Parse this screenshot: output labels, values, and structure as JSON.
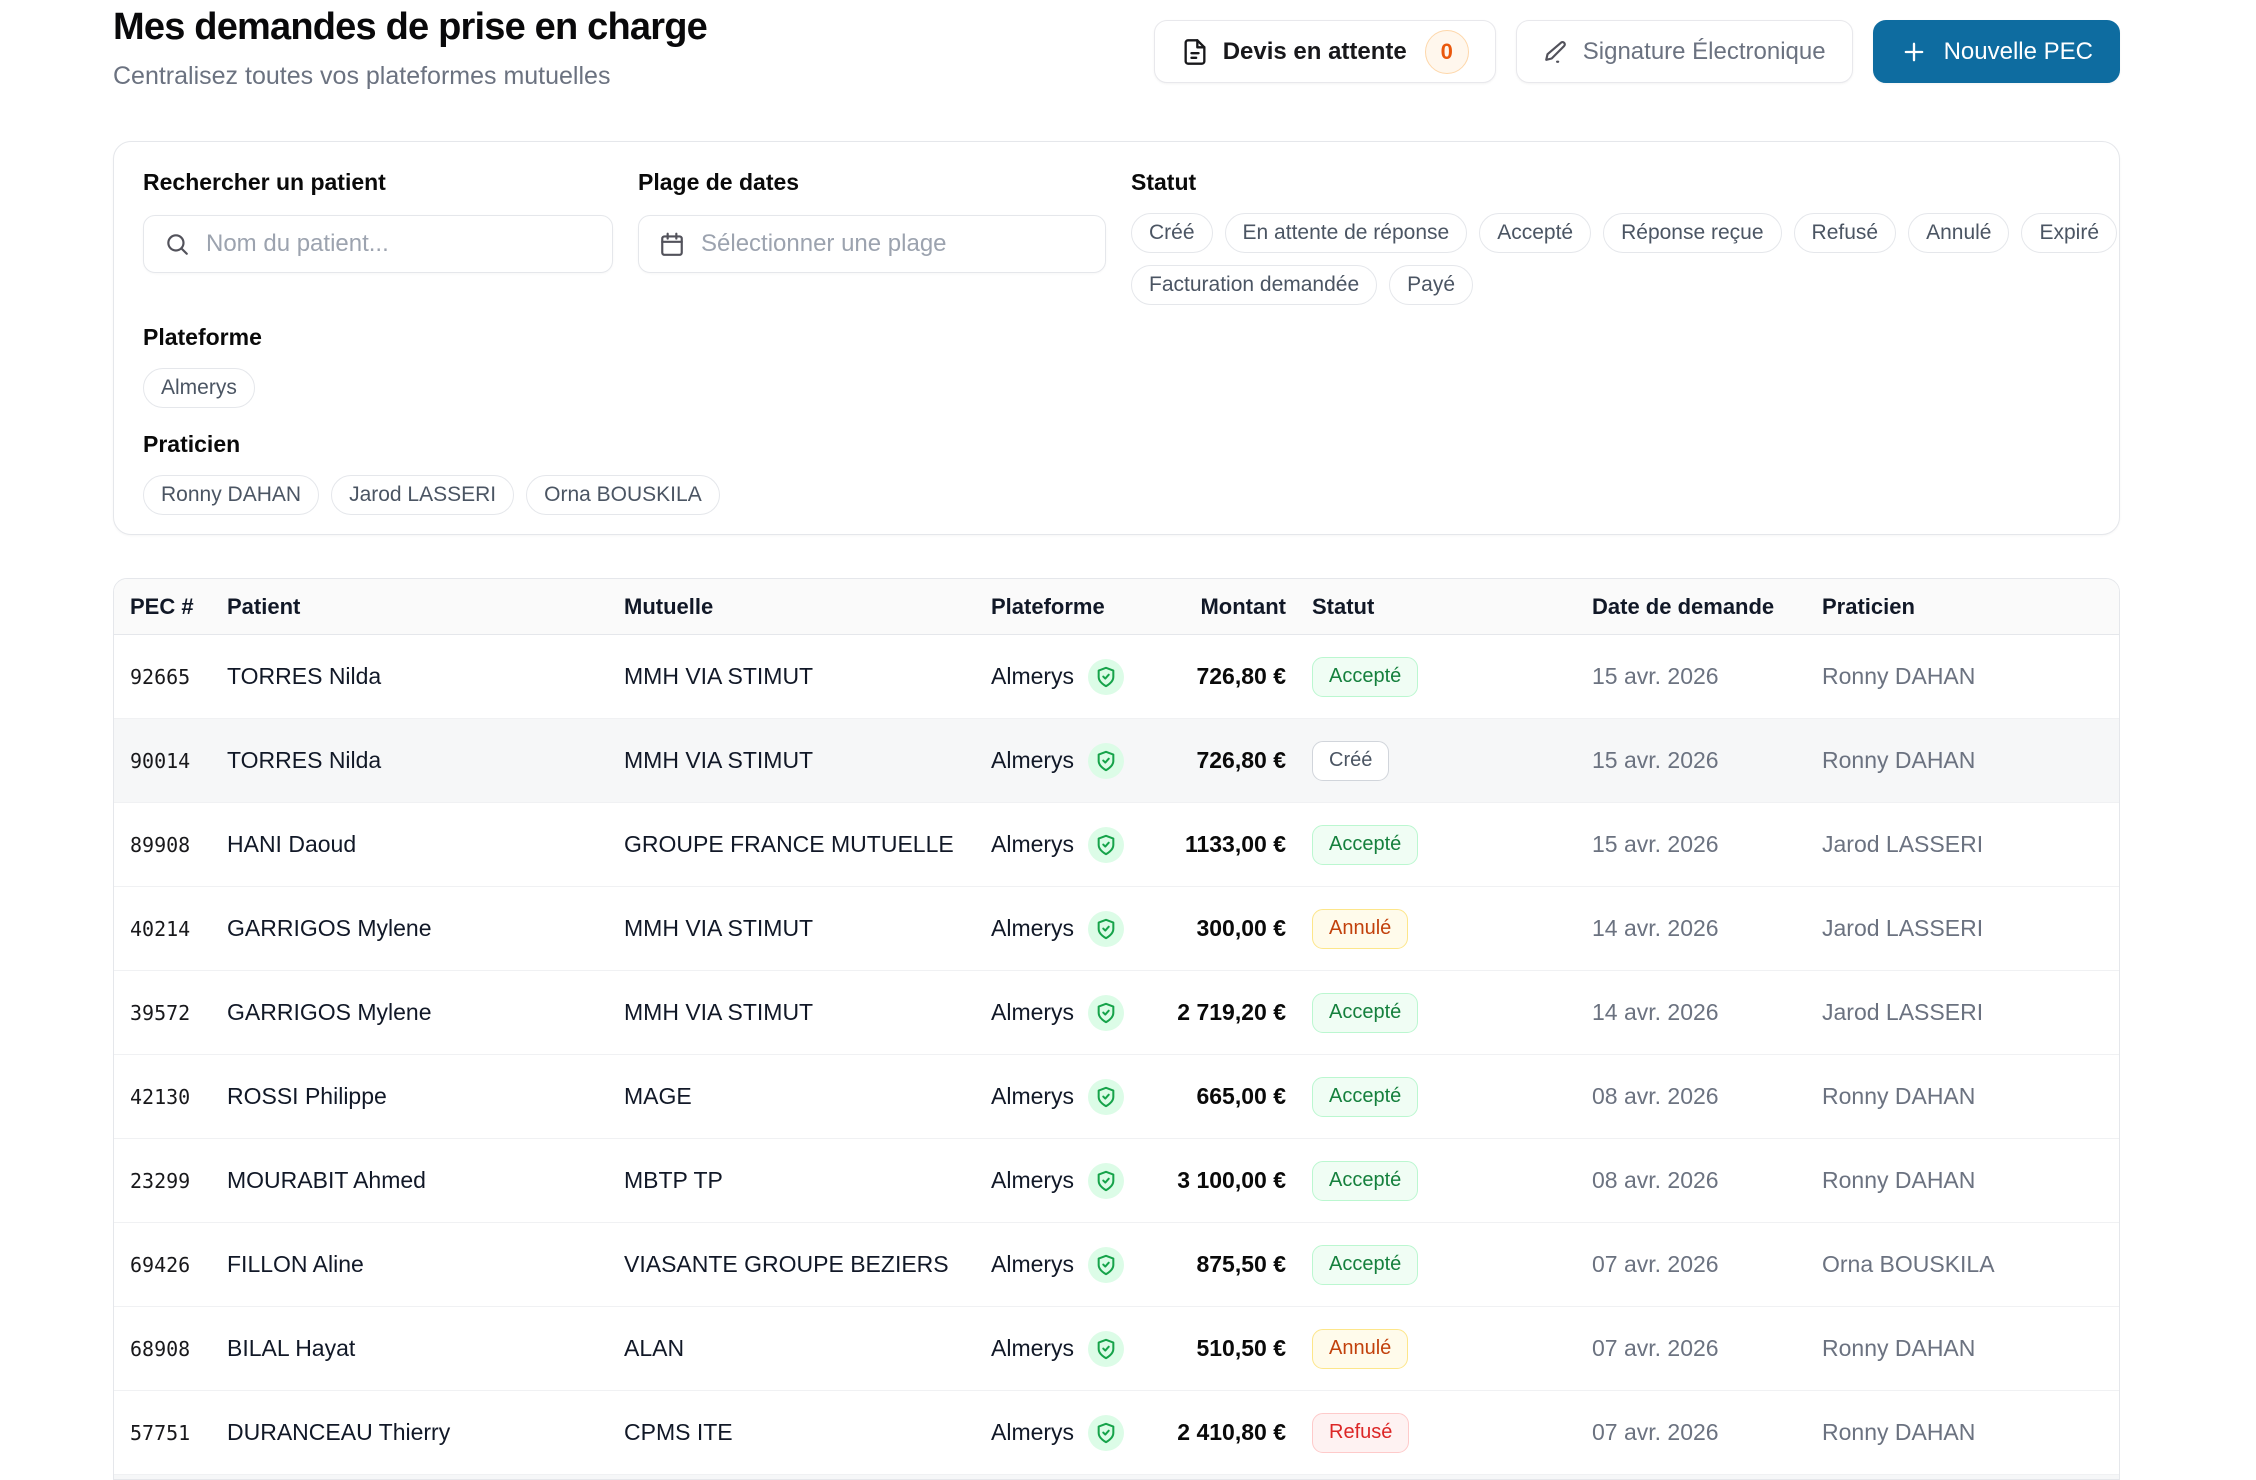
{
  "header": {
    "title": "Mes demandes de prise en charge",
    "subtitle": "Centralisez toutes vos plateformes mutuelles",
    "devis_button": {
      "label": "Devis en attente",
      "count": "0"
    },
    "signature_button": {
      "label": "Signature Électronique"
    },
    "new_pec_button": {
      "label": "Nouvelle PEC"
    }
  },
  "filters": {
    "search": {
      "label": "Rechercher un patient",
      "placeholder": "Nom du patient..."
    },
    "date_range": {
      "label": "Plage de dates",
      "placeholder": "Sélectionner une plage"
    },
    "status": {
      "label": "Statut",
      "options": [
        "Créé",
        "En attente de réponse",
        "Accepté",
        "Réponse reçue",
        "Refusé",
        "Annulé",
        "Expiré",
        "Facturation demandée",
        "Payé"
      ]
    },
    "platform": {
      "label": "Plateforme",
      "options": [
        "Almerys"
      ]
    },
    "practitioner": {
      "label": "Praticien",
      "options": [
        "Ronny DAHAN",
        "Jarod LASSERI",
        "Orna BOUSKILA"
      ]
    }
  },
  "table": {
    "columns": [
      "PEC #",
      "Patient",
      "Mutuelle",
      "Plateforme",
      "Montant",
      "Statut",
      "Date de demande",
      "Praticien"
    ],
    "rows": [
      {
        "pec": "92665",
        "patient": "TORRES Nilda",
        "mutuelle": "MMH VIA STIMUT",
        "plateforme": "Almerys",
        "montant": "726,80 €",
        "statut": "Accepté",
        "date": "15 avr. 2026",
        "praticien": "Ronny DAHAN",
        "highlighted": false
      },
      {
        "pec": "90014",
        "patient": "TORRES Nilda",
        "mutuelle": "MMH VIA STIMUT",
        "plateforme": "Almerys",
        "montant": "726,80 €",
        "statut": "Créé",
        "date": "15 avr. 2026",
        "praticien": "Ronny DAHAN",
        "highlighted": true
      },
      {
        "pec": "89908",
        "patient": "HANI Daoud",
        "mutuelle": "GROUPE FRANCE MUTUELLE",
        "plateforme": "Almerys",
        "montant": "1133,00 €",
        "statut": "Accepté",
        "date": "15 avr. 2026",
        "praticien": "Jarod LASSERI",
        "highlighted": false
      },
      {
        "pec": "40214",
        "patient": "GARRIGOS Mylene",
        "mutuelle": "MMH VIA STIMUT",
        "plateforme": "Almerys",
        "montant": "300,00 €",
        "statut": "Annulé",
        "date": "14 avr. 2026",
        "praticien": "Jarod LASSERI",
        "highlighted": false
      },
      {
        "pec": "39572",
        "patient": "GARRIGOS Mylene",
        "mutuelle": "MMH VIA STIMUT",
        "plateforme": "Almerys",
        "montant": "2 719,20 €",
        "statut": "Accepté",
        "date": "14 avr. 2026",
        "praticien": "Jarod LASSERI",
        "highlighted": false
      },
      {
        "pec": "42130",
        "patient": "ROSSI Philippe",
        "mutuelle": "MAGE",
        "plateforme": "Almerys",
        "montant": "665,00 €",
        "statut": "Accepté",
        "date": "08 avr. 2026",
        "praticien": "Ronny DAHAN",
        "highlighted": false
      },
      {
        "pec": "23299",
        "patient": "MOURABIT Ahmed",
        "mutuelle": "MBTP TP",
        "plateforme": "Almerys",
        "montant": "3 100,00 €",
        "statut": "Accepté",
        "date": "08 avr. 2026",
        "praticien": "Ronny DAHAN",
        "highlighted": false
      },
      {
        "pec": "69426",
        "patient": "FILLON Aline",
        "mutuelle": "VIASANTE GROUPE BEZIERS",
        "plateforme": "Almerys",
        "montant": "875,50 €",
        "statut": "Accepté",
        "date": "07 avr. 2026",
        "praticien": "Orna BOUSKILA",
        "highlighted": false
      },
      {
        "pec": "68908",
        "patient": "BILAL Hayat",
        "mutuelle": "ALAN",
        "plateforme": "Almerys",
        "montant": "510,50 €",
        "statut": "Annulé",
        "date": "07 avr. 2026",
        "praticien": "Ronny DAHAN",
        "highlighted": false
      },
      {
        "pec": "57751",
        "patient": "DURANCEAU Thierry",
        "mutuelle": "CPMS ITE",
        "plateforme": "Almerys",
        "montant": "2 410,80 €",
        "statut": "Refusé",
        "date": "07 avr. 2026",
        "praticien": "Ronny DAHAN",
        "highlighted": false
      }
    ],
    "status_styles": {
      "Accepté": "b-green",
      "Créé": "b-gray",
      "Annulé": "b-amber",
      "Refusé": "b-red",
      "Payé": "b-green"
    }
  },
  "colors": {
    "primary_blue": "#0e6ca0",
    "shield_green": "#16a34a",
    "pending_orange": "#ea580c"
  }
}
